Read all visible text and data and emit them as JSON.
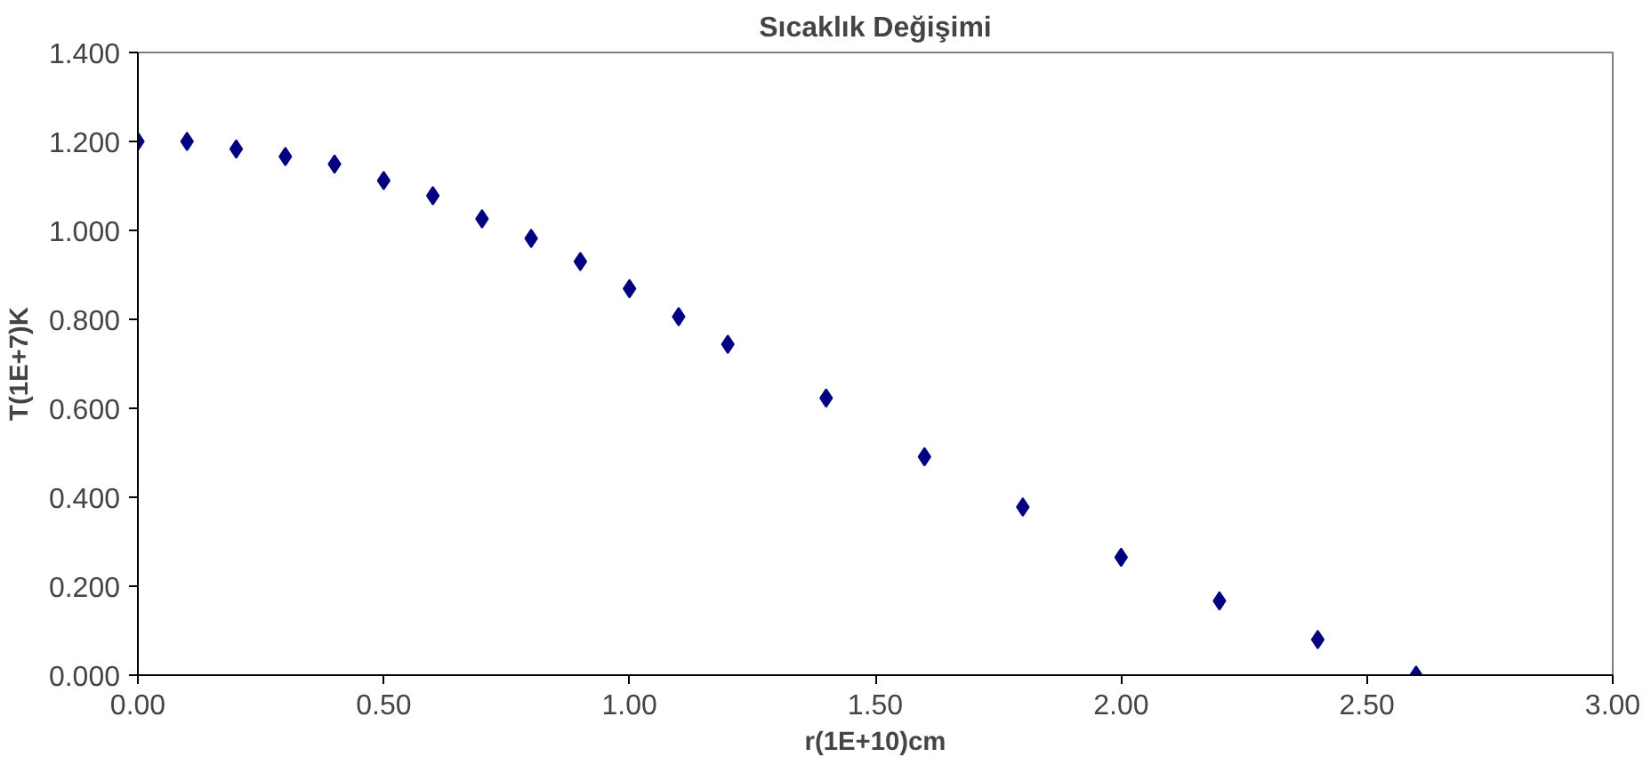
{
  "chart_data": {
    "type": "scatter",
    "title": "Sıcaklık Değişimi",
    "xlabel": "r(1E+10)cm",
    "ylabel": "T(1E+7)K",
    "x": [
      0,
      0.1,
      0.2,
      0.3,
      0.4,
      0.5,
      0.6,
      0.7,
      0.8,
      0.9,
      1.0,
      1.1,
      1.2,
      1.4,
      1.6,
      1.8,
      2.0,
      2.2,
      2.4,
      2.6
    ],
    "series": [
      {
        "color": "#000080",
        "values": [
          1.2,
          1.2,
          1.183,
          1.166,
          1.149,
          1.112,
          1.078,
          1.026,
          0.982,
          0.93,
          0.869,
          0.806,
          0.744,
          0.623,
          0.491,
          0.378,
          0.265,
          0.167,
          0.08,
          0.0
        ]
      }
    ],
    "marker": "diamond",
    "grid": false,
    "xlim": [
      0,
      3
    ],
    "xticks": [
      {
        "value": 0,
        "label": "0.00"
      },
      {
        "value": 0.5,
        "label": "0.50"
      },
      {
        "value": 1,
        "label": "1.00"
      },
      {
        "value": 1.5,
        "label": "1.50"
      },
      {
        "value": 2,
        "label": "2.00"
      },
      {
        "value": 2.5,
        "label": "2.50"
      },
      {
        "value": 3,
        "label": "3.00"
      }
    ],
    "ylim": [
      0,
      1.4
    ],
    "yticks": [
      {
        "value": 0,
        "label": "0.000"
      },
      {
        "value": 0.2,
        "label": "0.200"
      },
      {
        "value": 0.4,
        "label": "0.400"
      },
      {
        "value": 0.6,
        "label": "0.600"
      },
      {
        "value": 0.8,
        "label": "0.800"
      },
      {
        "value": 1.0,
        "label": "1.000"
      },
      {
        "value": 1.2,
        "label": "1.200"
      },
      {
        "value": 1.4,
        "label": "1.400"
      }
    ]
  }
}
